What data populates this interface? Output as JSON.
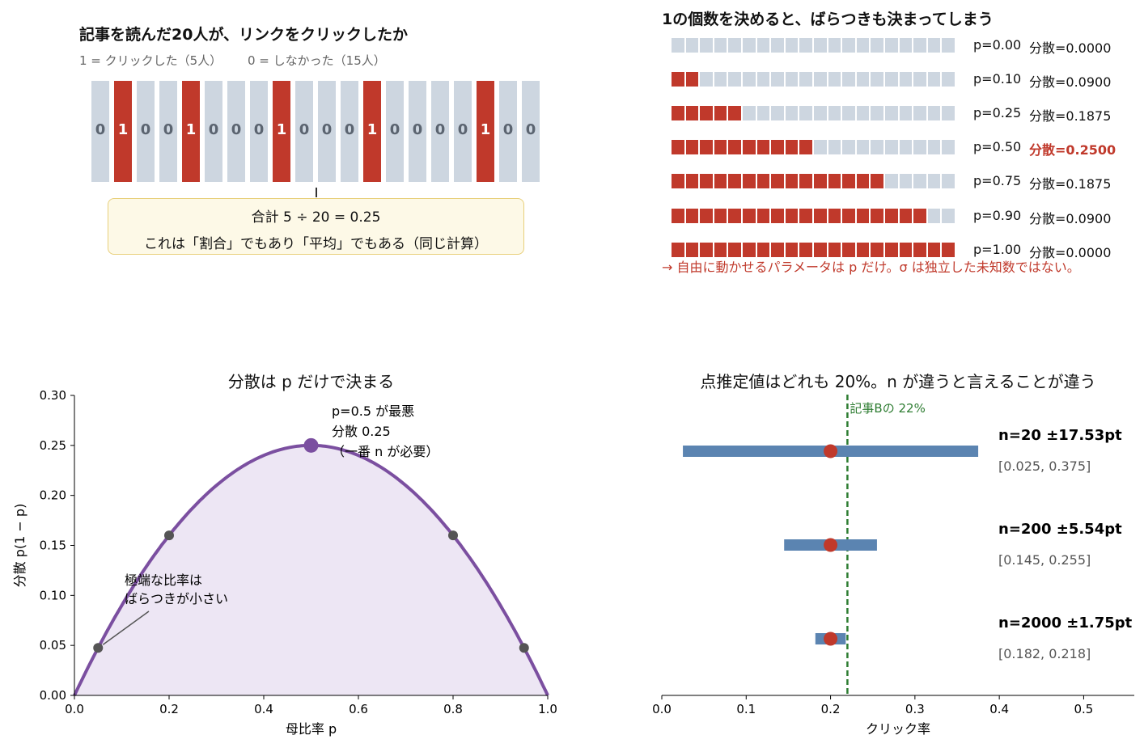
{
  "panel_tl": {
    "title": "記事を読んだ20人が、リンクをクリックしたか",
    "legend_one": "1 = クリックした（5人）",
    "legend_zero": "0 = しなかった（15人）",
    "cells": [
      "0",
      "1",
      "0",
      "0",
      "1",
      "0",
      "0",
      "0",
      "1",
      "0",
      "0",
      "0",
      "1",
      "0",
      "0",
      "0",
      "0",
      "1",
      "0",
      "0"
    ],
    "callout_line1": "合計 5 ÷ 20 = 0.25",
    "callout_line2": "これは「割合」でもあり「平均」でもある（同じ計算）"
  },
  "panel_tr": {
    "title": "1の個数を決めると、ばらつきも決まってしまう",
    "total_squares": 20,
    "rows": [
      {
        "p_label": "p=0.00",
        "var_label": "分散=0.0000",
        "filled": 0,
        "highlight": false
      },
      {
        "p_label": "p=0.10",
        "var_label": "分散=0.0900",
        "filled": 2,
        "highlight": false
      },
      {
        "p_label": "p=0.25",
        "var_label": "分散=0.1875",
        "filled": 5,
        "highlight": false
      },
      {
        "p_label": "p=0.50",
        "var_label": "分散=0.2500",
        "filled": 10,
        "highlight": true
      },
      {
        "p_label": "p=0.75",
        "var_label": "分散=0.1875",
        "filled": 15,
        "highlight": false
      },
      {
        "p_label": "p=0.90",
        "var_label": "分散=0.0900",
        "filled": 18,
        "highlight": false
      },
      {
        "p_label": "p=1.00",
        "var_label": "分散=0.0000",
        "filled": 20,
        "highlight": false
      }
    ],
    "note": "→ 自由に動かせるパラメータは p だけ。σ は独立した未知数ではない。"
  },
  "colors": {
    "red": "#c0392b",
    "grey": "#cdd6e0",
    "purple": "#7b4fa0",
    "blue": "#5b84b1",
    "green": "#2e7d32"
  },
  "chart_data": [
    {
      "type": "area",
      "title": "分散は p だけで決まる",
      "xlabel": "母比率 p",
      "ylabel": "分散 p(1 − p)",
      "xlim": [
        0,
        1
      ],
      "ylim": [
        0,
        0.3
      ],
      "xticks": [
        "0.0",
        "0.2",
        "0.4",
        "0.6",
        "0.8",
        "1.0"
      ],
      "yticks": [
        "0.00",
        "0.05",
        "0.10",
        "0.15",
        "0.20",
        "0.25",
        "0.30"
      ],
      "curve": "p*(1-p)",
      "points": [
        {
          "x": 0.05,
          "y": 0.0475
        },
        {
          "x": 0.2,
          "y": 0.16
        },
        {
          "x": 0.5,
          "y": 0.25,
          "highlight": true
        },
        {
          "x": 0.8,
          "y": 0.16
        },
        {
          "x": 0.95,
          "y": 0.0475
        }
      ],
      "annotation_max": [
        "p=0.5 が最悪",
        "分散 0.25",
        "（一番 n が必要）"
      ],
      "annotation_edge": [
        "極端な比率は",
        "ばらつきが小さい"
      ]
    },
    {
      "type": "scatter",
      "title": "点推定値はどれも 20%。n が違うと言えることが違う",
      "xlabel": "クリック率",
      "xlim": [
        0,
        0.56
      ],
      "xticks": [
        "0.0",
        "0.1",
        "0.2",
        "0.3",
        "0.4",
        "0.5"
      ],
      "reference": {
        "x": 0.22,
        "label": "記事Bの 22%"
      },
      "series": [
        {
          "label": "n=20 ±17.53pt",
          "estimate": 0.2,
          "low": 0.025,
          "high": 0.375,
          "ci_label": "[0.025, 0.375]"
        },
        {
          "label": "n=200 ±5.54pt",
          "estimate": 0.2,
          "low": 0.145,
          "high": 0.255,
          "ci_label": "[0.145, 0.255]"
        },
        {
          "label": "n=2000 ±1.75pt",
          "estimate": 0.2,
          "low": 0.182,
          "high": 0.218,
          "ci_label": "[0.182, 0.218]"
        }
      ]
    }
  ]
}
